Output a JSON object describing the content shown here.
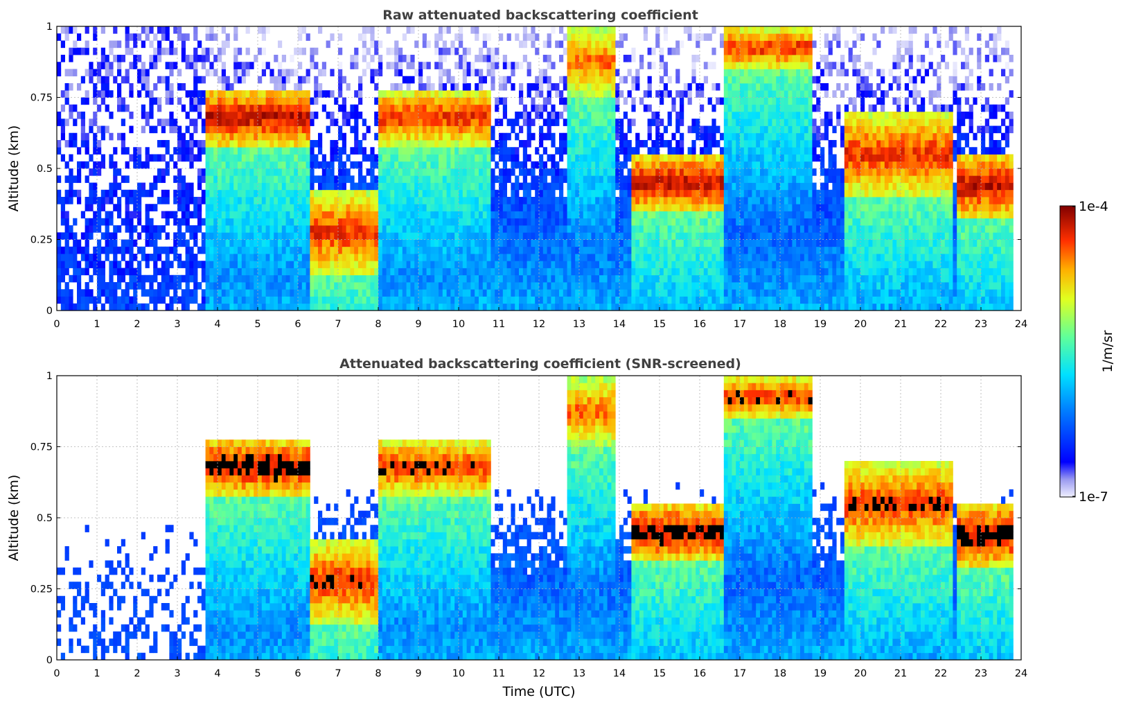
{
  "chart_data": [
    {
      "type": "heatmap",
      "title": "Raw attenuated backscattering coefficient",
      "xlabel": "",
      "ylabel": "Altitude (km)",
      "xlim": [
        0,
        24
      ],
      "ylim": [
        0,
        1
      ],
      "x_ticks": [
        "0",
        "1",
        "2",
        "3",
        "4",
        "5",
        "6",
        "7",
        "8",
        "9",
        "10",
        "11",
        "12",
        "13",
        "14",
        "15",
        "16",
        "17",
        "18",
        "19",
        "20",
        "21",
        "22",
        "23",
        "24"
      ],
      "y_ticks": [
        "0",
        "0.25",
        "0.5",
        "0.75",
        "1"
      ],
      "grid": true,
      "layers": [
        {
          "t": [
            3.7,
            6.3
          ],
          "top": 0.78,
          "base": 0.58,
          "intensity": 0.95
        },
        {
          "t": [
            6.3,
            8.0
          ],
          "top": 0.42,
          "base": 0.13,
          "intensity": 0.9
        },
        {
          "t": [
            8.0,
            10.8
          ],
          "top": 0.78,
          "base": 0.58,
          "intensity": 0.9
        },
        {
          "t": [
            12.7,
            13.9
          ],
          "top": 1.0,
          "base": 0.75,
          "intensity": 0.85
        },
        {
          "t": [
            14.3,
            16.6
          ],
          "top": 0.55,
          "base": 0.35,
          "intensity": 0.95
        },
        {
          "t": [
            16.6,
            18.8
          ],
          "top": 1.0,
          "base": 0.85,
          "intensity": 0.9
        },
        {
          "t": [
            19.6,
            22.3
          ],
          "top": 0.7,
          "base": 0.4,
          "intensity": 0.9
        },
        {
          "t": [
            22.4,
            23.8
          ],
          "top": 0.55,
          "base": 0.33,
          "intensity": 0.95
        }
      ]
    },
    {
      "type": "heatmap",
      "title": "Attenuated backscattering coefficient (SNR-screened)",
      "xlabel": "Time (UTC)",
      "ylabel": "Altitude (km)",
      "xlim": [
        0,
        24
      ],
      "ylim": [
        0,
        1
      ],
      "x_ticks": [
        "0",
        "1",
        "2",
        "3",
        "4",
        "5",
        "6",
        "7",
        "8",
        "9",
        "10",
        "11",
        "12",
        "13",
        "14",
        "15",
        "16",
        "17",
        "18",
        "19",
        "20",
        "21",
        "22",
        "23",
        "24"
      ],
      "y_ticks": [
        "0",
        "0.25",
        "0.5",
        "0.75",
        "1"
      ],
      "grid": true,
      "screened_above_threshold_color": "#000000",
      "layers": [
        {
          "t": [
            3.7,
            6.3
          ],
          "top": 0.78,
          "base": 0.58,
          "intensity": 0.95
        },
        {
          "t": [
            6.3,
            8.0
          ],
          "top": 0.42,
          "base": 0.13,
          "intensity": 0.9
        },
        {
          "t": [
            8.0,
            10.8
          ],
          "top": 0.78,
          "base": 0.58,
          "intensity": 0.9
        },
        {
          "t": [
            12.7,
            13.9
          ],
          "top": 1.0,
          "base": 0.75,
          "intensity": 0.85
        },
        {
          "t": [
            14.3,
            16.6
          ],
          "top": 0.55,
          "base": 0.35,
          "intensity": 0.95
        },
        {
          "t": [
            16.6,
            18.8
          ],
          "top": 1.0,
          "base": 0.85,
          "intensity": 0.9
        },
        {
          "t": [
            19.6,
            22.3
          ],
          "top": 0.7,
          "base": 0.4,
          "intensity": 0.9
        },
        {
          "t": [
            22.4,
            23.8
          ],
          "top": 0.55,
          "base": 0.33,
          "intensity": 0.95
        }
      ]
    }
  ],
  "colorbar": {
    "max_label": "1e-4",
    "min_label": "1e-7",
    "label": "1/m/sr",
    "colormap": "jet"
  }
}
